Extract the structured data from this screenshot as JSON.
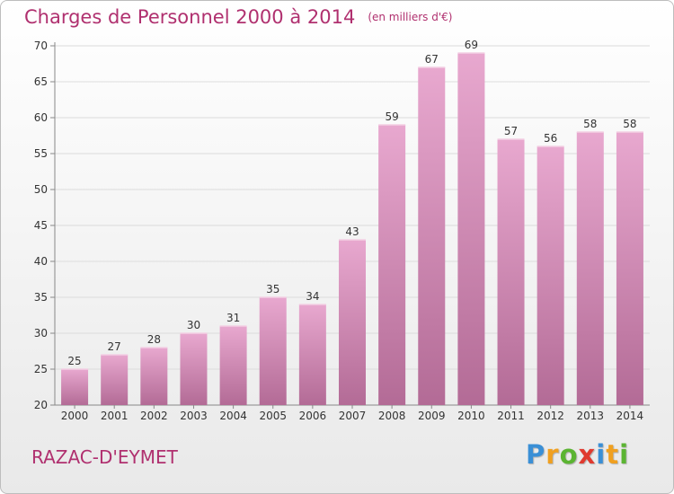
{
  "chart_data": {
    "type": "bar",
    "title": "Charges de Personnel 2000 à 2014",
    "subtitle": "(en milliers d'€)",
    "categories": [
      "2000",
      "2001",
      "2002",
      "2003",
      "2004",
      "2005",
      "2006",
      "2007",
      "2008",
      "2009",
      "2010",
      "2011",
      "2012",
      "2013",
      "2014"
    ],
    "values": [
      25,
      27,
      28,
      30,
      31,
      35,
      34,
      43,
      59,
      67,
      69,
      57,
      56,
      58,
      58
    ],
    "ylim": [
      20,
      70
    ],
    "yticks": [
      20,
      25,
      30,
      35,
      40,
      45,
      50,
      55,
      60,
      65,
      70
    ],
    "grid": true,
    "bar_color_top": "#e8a8cf",
    "bar_color_bottom": "#b36b96",
    "text_color": "#b0306f"
  },
  "place_name": "RAZAC-D'EYMET",
  "logo": {
    "text": "Proxiti",
    "letters": [
      {
        "char": "P",
        "color": "#3a8fd6"
      },
      {
        "char": "r",
        "color": "#f0a020"
      },
      {
        "char": "o",
        "color": "#5bb432"
      },
      {
        "char": "x",
        "color": "#e03a2f"
      },
      {
        "char": "i",
        "color": "#3a8fd6"
      },
      {
        "char": "t",
        "color": "#f0a020"
      },
      {
        "char": "i",
        "color": "#5bb432"
      }
    ]
  }
}
